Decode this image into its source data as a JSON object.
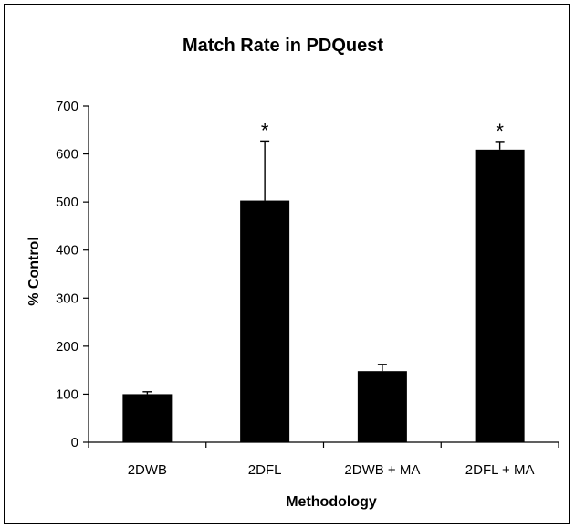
{
  "chart_data": {
    "type": "bar",
    "title": "Match Rate in PDQuest",
    "xlabel": "Methodology",
    "ylabel": "% Control",
    "ylim": [
      0,
      700
    ],
    "yticks": [
      "0",
      "100",
      "200",
      "300",
      "400",
      "500",
      "600",
      "700"
    ],
    "categories": [
      "2DWB",
      "2DFL",
      "2DWB + MA",
      "2DFL + MA"
    ],
    "values": [
      100,
      503,
      148,
      609
    ],
    "error_plus": [
      5,
      124,
      14,
      17
    ],
    "annotations": [
      "",
      "*",
      "",
      "*"
    ],
    "bar_color": "#000000",
    "grid": false,
    "legend": "none"
  }
}
